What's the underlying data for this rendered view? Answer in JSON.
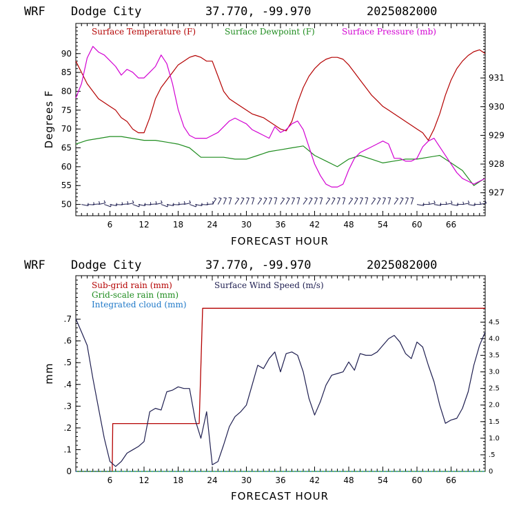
{
  "chart_data": [
    {
      "type": "line",
      "header": {
        "model": "WRF",
        "station": "Dodge City",
        "coords": "37.770, -99.970",
        "run": "2025082000"
      },
      "xlabel": "FORECAST HOUR",
      "ylabel": "Degrees F",
      "xlim": [
        0,
        72
      ],
      "ylim": [
        47,
        98
      ],
      "y2lim": [
        926.2,
        932.9
      ],
      "xticks": [
        "6",
        "12",
        "18",
        "24",
        "30",
        "36",
        "42",
        "48",
        "54",
        "60",
        "66"
      ],
      "yticks": [
        "50",
        "55",
        "60",
        "65",
        "70",
        "75",
        "80",
        "85",
        "90"
      ],
      "y2ticks": [
        "927",
        "928",
        "929",
        "930",
        "931"
      ],
      "colors": {
        "temperature": "#b40000",
        "dewpoint": "#1e8c1e",
        "pressure": "#d200d2",
        "wind": "#1e1e50"
      },
      "series": [
        {
          "name": "Surface Temperature (F)",
          "axis": "left",
          "x": [
            0,
            1,
            2,
            3,
            4,
            5,
            6,
            7,
            8,
            9,
            10,
            11,
            12,
            13,
            14,
            15,
            16,
            17,
            18,
            19,
            20,
            21,
            22,
            23,
            24,
            25,
            26,
            27,
            28,
            29,
            30,
            31,
            32,
            33,
            34,
            35,
            36,
            37,
            38,
            39,
            40,
            41,
            42,
            43,
            44,
            45,
            46,
            47,
            48,
            49,
            50,
            51,
            52,
            53,
            54,
            55,
            56,
            57,
            58,
            59,
            60,
            61,
            62,
            63,
            64,
            65,
            66,
            67,
            68,
            69,
            70,
            71,
            72
          ],
          "values": [
            88,
            85,
            82,
            80,
            78,
            77,
            76,
            75,
            73,
            72,
            70,
            69,
            69,
            73,
            78,
            81,
            83,
            85,
            87,
            88,
            89,
            89.5,
            89,
            88,
            88,
            84,
            80,
            78,
            77,
            76,
            75,
            74,
            73.5,
            73,
            72,
            71,
            70,
            69.5,
            72,
            77,
            81,
            84,
            86,
            87.5,
            88.5,
            89,
            89,
            88.5,
            87,
            85,
            83,
            81,
            79,
            77.5,
            76,
            75,
            74,
            73,
            72,
            71,
            70,
            69,
            67,
            70,
            74,
            79,
            83,
            86,
            88,
            89.5,
            90.5,
            91,
            90
          ]
        },
        {
          "name": "Surface Dewpoint (F)",
          "axis": "left",
          "x": [
            0,
            2,
            4,
            6,
            8,
            10,
            12,
            14,
            16,
            18,
            20,
            22,
            24,
            26,
            28,
            30,
            32,
            34,
            36,
            38,
            40,
            42,
            44,
            46,
            48,
            50,
            52,
            54,
            56,
            58,
            60,
            62,
            64,
            66,
            68,
            70,
            72
          ],
          "values": [
            66,
            67,
            67.5,
            68,
            68,
            67.5,
            67,
            67,
            66.5,
            66,
            65,
            62.5,
            62.5,
            62.5,
            62,
            62,
            63,
            64,
            64.5,
            65,
            65.5,
            63,
            61.5,
            60,
            62,
            63,
            62,
            61,
            61.5,
            62,
            62,
            62.5,
            63,
            61,
            59,
            55,
            57
          ]
        },
        {
          "name": "Surface Pressure (mb)",
          "axis": "right",
          "x": [
            0,
            1,
            2,
            3,
            4,
            5,
            6,
            7,
            8,
            9,
            10,
            11,
            12,
            13,
            14,
            15,
            16,
            17,
            18,
            19,
            20,
            21,
            22,
            23,
            24,
            25,
            26,
            27,
            28,
            29,
            30,
            31,
            32,
            33,
            34,
            35,
            36,
            37,
            38,
            39,
            40,
            41,
            42,
            43,
            44,
            45,
            46,
            47,
            48,
            49,
            50,
            51,
            52,
            53,
            54,
            55,
            56,
            57,
            58,
            59,
            60,
            61,
            62,
            63,
            64,
            65,
            66,
            67,
            68,
            69,
            70,
            71,
            72
          ],
          "values": [
            930.3,
            930.8,
            931.7,
            932.1,
            931.9,
            931.8,
            931.6,
            931.4,
            931.1,
            931.3,
            931.2,
            931.0,
            931.0,
            931.2,
            931.4,
            931.8,
            931.5,
            930.8,
            929.9,
            929.3,
            929.0,
            928.9,
            928.9,
            928.9,
            929.0,
            929.1,
            929.3,
            929.5,
            929.6,
            929.5,
            929.4,
            929.2,
            929.1,
            929.0,
            928.9,
            929.3,
            929.1,
            929.2,
            929.4,
            929.5,
            929.2,
            928.6,
            928.0,
            927.6,
            927.3,
            927.2,
            927.2,
            927.3,
            927.8,
            928.2,
            928.4,
            928.5,
            928.6,
            928.7,
            928.8,
            928.7,
            928.2,
            928.2,
            928.1,
            928.1,
            928.2,
            928.6,
            928.8,
            928.9,
            928.6,
            928.3,
            928.0,
            927.7,
            927.5,
            927.4,
            927.3,
            927.4,
            927.5
          ]
        }
      ],
      "wind_barbs": "row of wind barbs along Y=50"
    },
    {
      "type": "line",
      "header": {
        "model": "WRF",
        "station": "Dodge City",
        "coords": "37.770, -99.970",
        "run": "2025082000"
      },
      "xlabel": "FORECAST HOUR",
      "ylabel": "mm",
      "xlim": [
        0,
        72
      ],
      "ylim": [
        0,
        0.9
      ],
      "y2lim": [
        0,
        5.9
      ],
      "xticks": [
        "6",
        "12",
        "18",
        "24",
        "30",
        "36",
        "42",
        "48",
        "54",
        "60",
        "66"
      ],
      "yticks": [
        "0",
        ".1",
        ".2",
        ".3",
        ".4",
        ".5",
        ".6",
        ".7"
      ],
      "y2ticks": [
        "0",
        ".5",
        "1.0",
        "1.5",
        "2.0",
        "2.5",
        "3.0",
        "3.5",
        "4.0",
        "4.5"
      ],
      "colors": {
        "subgrid": "#b40000",
        "gridscale": "#1e8c1e",
        "cloud": "#1e78c8",
        "wind": "#1e1e50"
      },
      "series": [
        {
          "name": "Sub-grid rain (mm)",
          "axis": "left",
          "x": [
            0,
            6.4,
            6.5,
            21.7,
            22.3,
            72
          ],
          "values": [
            0,
            0,
            0.22,
            0.22,
            0.75,
            0.75
          ]
        },
        {
          "name": "Grid-scale rain (mm)",
          "axis": "left",
          "x": [
            0,
            72
          ],
          "values": [
            0,
            0
          ]
        },
        {
          "name": "Integrated cloud (mm)",
          "axis": "left",
          "x": [
            0,
            72
          ],
          "values": [
            0,
            0
          ]
        },
        {
          "name": "Surface Wind Speed (m/s)",
          "axis": "right",
          "x": [
            0,
            1,
            2,
            3,
            4,
            5,
            6,
            7,
            8,
            9,
            10,
            11,
            12,
            13,
            14,
            15,
            16,
            17,
            18,
            19,
            20,
            21,
            22,
            23,
            24,
            25,
            26,
            27,
            28,
            29,
            30,
            31,
            32,
            33,
            34,
            35,
            36,
            37,
            38,
            39,
            40,
            41,
            42,
            43,
            44,
            45,
            46,
            47,
            48,
            49,
            50,
            51,
            52,
            53,
            54,
            55,
            56,
            57,
            58,
            59,
            60,
            61,
            62,
            63,
            64,
            65,
            66,
            67,
            68,
            69,
            70,
            71,
            72
          ],
          "values": [
            4.6,
            4.2,
            3.8,
            2.8,
            1.9,
            1.0,
            0.3,
            0.15,
            0.3,
            0.55,
            0.65,
            0.75,
            0.9,
            1.8,
            1.9,
            1.85,
            2.4,
            2.45,
            2.55,
            2.5,
            2.5,
            1.55,
            1.0,
            1.8,
            0.2,
            0.3,
            0.8,
            1.35,
            1.65,
            1.8,
            2.0,
            2.6,
            3.2,
            3.1,
            3.4,
            3.6,
            3.0,
            3.55,
            3.6,
            3.5,
            3.0,
            2.2,
            1.7,
            2.1,
            2.6,
            2.9,
            2.95,
            3.0,
            3.3,
            3.05,
            3.55,
            3.5,
            3.5,
            3.6,
            3.8,
            4.0,
            4.1,
            3.9,
            3.55,
            3.4,
            3.9,
            3.75,
            3.2,
            2.7,
            2.0,
            1.45,
            1.55,
            1.6,
            1.9,
            2.4,
            3.2,
            3.8,
            4.2
          ]
        }
      ]
    }
  ]
}
